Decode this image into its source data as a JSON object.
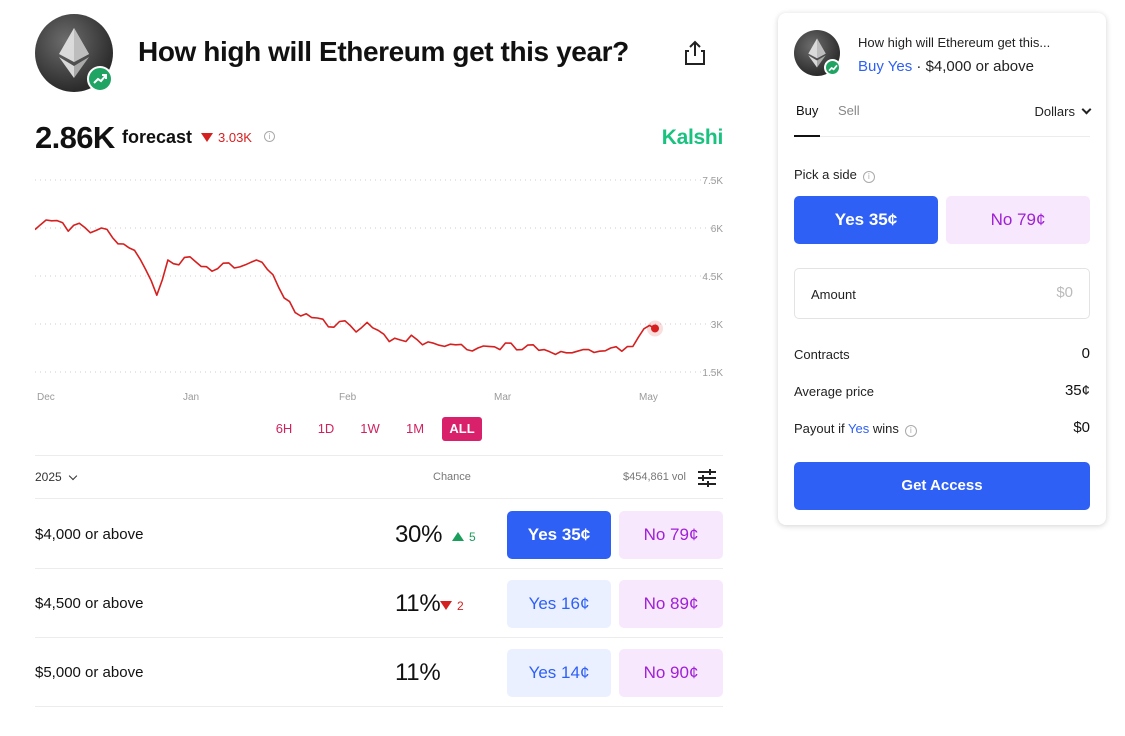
{
  "market": {
    "title": "How high will Ethereum get this year?",
    "forecast_value": "2.86K",
    "forecast_label": "forecast",
    "forecast_change": "3.03K",
    "brand": "Kalshi",
    "icons": {
      "coin": "ethereum-logo-icon",
      "badge": "trending-up-icon",
      "share": "share-icon",
      "info": "info-icon"
    }
  },
  "chart_data": {
    "type": "line",
    "x_ticks": [
      "Dec",
      "Jan",
      "Feb",
      "Mar",
      "May"
    ],
    "y_ticks": [
      "7.5K",
      "6K",
      "4.5K",
      "3K",
      "1.5K"
    ],
    "ylim": [
      1500,
      7500
    ],
    "grid": true,
    "color": "#d61f1f",
    "series": [
      {
        "values": [
          5950,
          6250,
          6230,
          5900,
          6150,
          5850,
          6000,
          5700,
          5500,
          5300,
          4700,
          3900,
          5000,
          4850,
          5100,
          4800,
          4650,
          4900,
          4750,
          4850,
          5000,
          4700,
          4150,
          3700,
          3250,
          3200,
          3150,
          2900,
          3100,
          2750,
          3050,
          2800,
          2450,
          2500,
          2650,
          2350,
          2400,
          2300,
          2350,
          2200,
          2250,
          2300,
          2200,
          2400,
          2200,
          2350,
          2200,
          2050,
          2100,
          2150,
          2200,
          2150,
          2250,
          2150,
          2300,
          2850,
          2860
        ]
      }
    ]
  },
  "ranges": [
    "6H",
    "1D",
    "1W",
    "1M",
    "ALL"
  ],
  "table": {
    "year": "2025",
    "chance_label": "Chance",
    "volume": "$454,861 vol",
    "rows": [
      {
        "label": "$4,000 or above",
        "chance": "30%",
        "change": "5",
        "direction": "up",
        "yes": "Yes 35¢",
        "no": "No 79¢"
      },
      {
        "label": "$4,500 or above",
        "chance": "11%",
        "change": "2",
        "direction": "down",
        "yes": "Yes 16¢",
        "no": "No 89¢"
      },
      {
        "label": "$5,000 or above",
        "chance": "11%",
        "change": "",
        "direction": "",
        "yes": "Yes 14¢",
        "no": "No 90¢"
      }
    ]
  },
  "panel": {
    "title": "How high will Ethereum get this...",
    "side": "Buy Yes",
    "separator": "·",
    "option": "$4,000 or above",
    "tab_buy": "Buy",
    "tab_sell": "Sell",
    "currency": "Dollars",
    "pick_side": "Pick a side",
    "yes_btn": "Yes 35¢",
    "no_btn": "No 79¢",
    "amount_label": "Amount",
    "amount_placeholder": "$0",
    "contracts_label": "Contracts",
    "contracts_value": "0",
    "avg_price_label": "Average price",
    "avg_price_value": "35¢",
    "payout_prefix": "Payout if",
    "payout_yes": "Yes",
    "payout_suffix": "wins",
    "payout_value": "$0",
    "cta": "Get Access"
  },
  "colors": {
    "brand_green": "#19c27f",
    "yes_blue": "#2f60f5",
    "no_purple": "#a020d6",
    "range_pink": "#d9206a",
    "line_red": "#d61f1f"
  }
}
